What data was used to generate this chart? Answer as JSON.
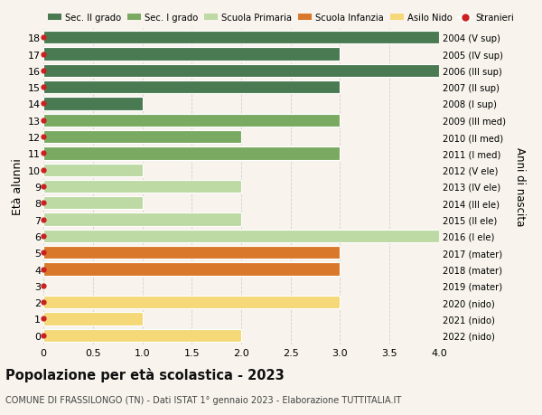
{
  "ages": [
    18,
    17,
    16,
    15,
    14,
    13,
    12,
    11,
    10,
    9,
    8,
    7,
    6,
    5,
    4,
    3,
    2,
    1,
    0
  ],
  "labels_right": [
    "2004 (V sup)",
    "2005 (IV sup)",
    "2006 (III sup)",
    "2007 (II sup)",
    "2008 (I sup)",
    "2009 (III med)",
    "2010 (II med)",
    "2011 (I med)",
    "2012 (V ele)",
    "2013 (IV ele)",
    "2014 (III ele)",
    "2015 (II ele)",
    "2016 (I ele)",
    "2017 (mater)",
    "2018 (mater)",
    "2019 (mater)",
    "2020 (nido)",
    "2021 (nido)",
    "2022 (nido)"
  ],
  "bar_values": [
    4.0,
    3.0,
    4.0,
    3.0,
    1.0,
    3.0,
    2.0,
    3.0,
    1.0,
    2.0,
    1.0,
    2.0,
    4.0,
    3.0,
    3.0,
    0.0,
    3.0,
    1.0,
    2.0
  ],
  "bar_colors": [
    "#4a7a52",
    "#4a7a52",
    "#4a7a52",
    "#4a7a52",
    "#4a7a52",
    "#7aaa62",
    "#7aaa62",
    "#7aaa62",
    "#bdd9a4",
    "#bdd9a4",
    "#bdd9a4",
    "#bdd9a4",
    "#bdd9a4",
    "#d9782a",
    "#d9782a",
    "#d9782a",
    "#f5d878",
    "#f5d878",
    "#f5d878"
  ],
  "stranieri_dot_color": "#cc2020",
  "xlim": [
    0,
    4.0
  ],
  "xticks": [
    0,
    0.5,
    1.0,
    1.5,
    2.0,
    2.5,
    3.0,
    3.5,
    4.0
  ],
  "xtick_labels": [
    "0",
    "0.5",
    "1.0",
    "1.5",
    "2.0",
    "2.5",
    "3.0",
    "3.5",
    "4.0"
  ],
  "ylabel": "Età alunni",
  "ylabel_right": "Anni di nascita",
  "title": "Popolazione per età scolastica - 2023",
  "subtitle": "COMUNE DI FRASSILONGO (TN) - Dati ISTAT 1° gennaio 2023 - Elaborazione TUTTITALIA.IT",
  "legend_labels": [
    "Sec. II grado",
    "Sec. I grado",
    "Scuola Primaria",
    "Scuola Infanzia",
    "Asilo Nido",
    "Stranieri"
  ],
  "legend_colors": [
    "#4a7a52",
    "#7aaa62",
    "#bdd9a4",
    "#d9782a",
    "#f5d878",
    "#cc2020"
  ],
  "background_color": "#f8f4ed",
  "bar_height": 0.78,
  "grid_color": "#d0d0d0"
}
